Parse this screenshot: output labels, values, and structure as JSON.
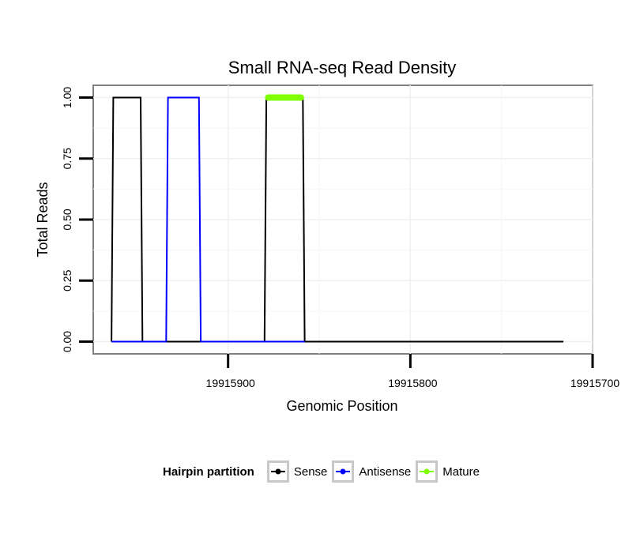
{
  "chart_data": {
    "type": "line",
    "title": "Small RNA-seq Read Density",
    "xlabel": "Genomic Position",
    "ylabel": "Total Reads",
    "xlim": [
      19915974,
      19915700
    ],
    "x_reversed": true,
    "ylim": [
      -0.05,
      1.05
    ],
    "x_ticks": [
      19915900,
      19915800,
      19915700
    ],
    "x_tick_labels": [
      "19915900",
      "19915800",
      "19915700"
    ],
    "y_ticks": [
      0.0,
      0.25,
      0.5,
      0.75,
      1.0
    ],
    "y_tick_labels": [
      "0.00",
      "0.25",
      "0.50",
      "0.75",
      "1.00"
    ],
    "grid": true,
    "legend_title": "Hairpin partition",
    "legend_position": "bottom",
    "series": [
      {
        "name": "Sense",
        "color": "#000000",
        "x": [
          19915964,
          19915963,
          19915948,
          19915947,
          19915880,
          19915879,
          19915859,
          19915858,
          19915716
        ],
        "y": [
          0,
          1,
          1,
          0,
          0,
          1,
          1,
          0,
          0
        ]
      },
      {
        "name": "Antisense",
        "color": "#0000ff",
        "x": [
          19915964,
          19915934,
          19915933,
          19915916,
          19915915,
          19915880,
          19915858
        ],
        "y": [
          0,
          0,
          1,
          1,
          0,
          0,
          0
        ]
      },
      {
        "name": "Mature",
        "color": "#7fff00",
        "x": [
          19915878,
          19915860
        ],
        "y": [
          1,
          1
        ]
      }
    ]
  }
}
